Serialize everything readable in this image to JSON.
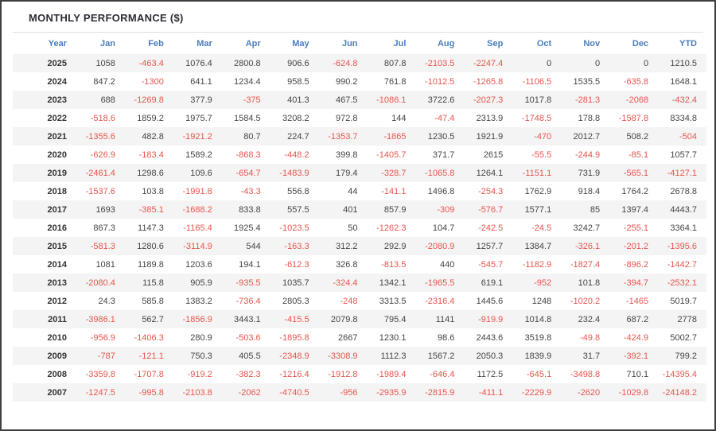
{
  "title": "MONTHLY PERFORMANCE ($)",
  "colors": {
    "header_text": "#4a7ebd",
    "negative": "#e8554e",
    "positive": "#454545",
    "year_text": "#333333",
    "row_stripe": "#f4f4f4",
    "divider": "#dddddd",
    "frame_border": "#3f3f3f",
    "title_text": "#2d2d36"
  },
  "table": {
    "columns": [
      "Year",
      "Jan",
      "Feb",
      "Mar",
      "Apr",
      "May",
      "Jun",
      "Jul",
      "Aug",
      "Sep",
      "Oct",
      "Nov",
      "Dec",
      "YTD"
    ],
    "rows": [
      {
        "year": "2025",
        "values": [
          "1058",
          "-463.4",
          "1076.4",
          "2800.8",
          "906.6",
          "-624.8",
          "807.8",
          "-2103.5",
          "-2247.4",
          "0",
          "0",
          "0",
          "1210.5"
        ]
      },
      {
        "year": "2024",
        "values": [
          "847.2",
          "-1300",
          "641.1",
          "1234.4",
          "958.5",
          "990.2",
          "761.8",
          "-1012.5",
          "-1265.8",
          "-1106.5",
          "1535.5",
          "-635.8",
          "1648.1"
        ]
      },
      {
        "year": "2023",
        "values": [
          "688",
          "-1269.8",
          "377.9",
          "-375",
          "401.3",
          "467.5",
          "-1086.1",
          "3722.6",
          "-2027.3",
          "1017.8",
          "-281.3",
          "-2068",
          "-432.4"
        ]
      },
      {
        "year": "2022",
        "values": [
          "-518.6",
          "1859.2",
          "1975.7",
          "1584.5",
          "3208.2",
          "972.8",
          "144",
          "-47.4",
          "2313.9",
          "-1748.5",
          "178.8",
          "-1587.8",
          "8334.8"
        ]
      },
      {
        "year": "2021",
        "values": [
          "-1355.6",
          "482.8",
          "-1921.2",
          "80.7",
          "224.7",
          "-1353.7",
          "-1865",
          "1230.5",
          "1921.9",
          "-470",
          "2012.7",
          "508.2",
          "-504"
        ]
      },
      {
        "year": "2020",
        "values": [
          "-626.9",
          "-183.4",
          "1589.2",
          "-868.3",
          "-448.2",
          "399.8",
          "-1405.7",
          "371.7",
          "2615",
          "-55.5",
          "-244.9",
          "-85.1",
          "1057.7"
        ]
      },
      {
        "year": "2019",
        "values": [
          "-2461.4",
          "1298.6",
          "109.6",
          "-654.7",
          "-1483.9",
          "179.4",
          "-328.7",
          "-1065.8",
          "1264.1",
          "-1151.1",
          "731.9",
          "-565.1",
          "-4127.1"
        ]
      },
      {
        "year": "2018",
        "values": [
          "-1537.6",
          "103.8",
          "-1991.8",
          "-43.3",
          "556.8",
          "44",
          "-141.1",
          "1496.8",
          "-254.3",
          "1762.9",
          "918.4",
          "1764.2",
          "2678.8"
        ]
      },
      {
        "year": "2017",
        "values": [
          "1693",
          "-385.1",
          "-1688.2",
          "833.8",
          "557.5",
          "401",
          "857.9",
          "-309",
          "-576.7",
          "1577.1",
          "85",
          "1397.4",
          "4443.7"
        ]
      },
      {
        "year": "2016",
        "values": [
          "867.3",
          "1147.3",
          "-1165.4",
          "1925.4",
          "-1023.5",
          "50",
          "-1262.3",
          "104.7",
          "-242.5",
          "-24.5",
          "3242.7",
          "-255.1",
          "3364.1"
        ]
      },
      {
        "year": "2015",
        "values": [
          "-581.3",
          "1280.6",
          "-3114.9",
          "544",
          "-163.3",
          "312.2",
          "292.9",
          "-2080.9",
          "1257.7",
          "1384.7",
          "-326.1",
          "-201.2",
          "-1395.6"
        ]
      },
      {
        "year": "2014",
        "values": [
          "1081",
          "1189.8",
          "1203.6",
          "194.1",
          "-612.3",
          "326.8",
          "-813.5",
          "440",
          "-545.7",
          "-1182.9",
          "-1827.4",
          "-896.2",
          "-1442.7"
        ]
      },
      {
        "year": "2013",
        "values": [
          "-2080.4",
          "115.8",
          "905.9",
          "-935.5",
          "1035.7",
          "-324.4",
          "1342.1",
          "-1965.5",
          "619.1",
          "-952",
          "101.8",
          "-394.7",
          "-2532.1"
        ]
      },
      {
        "year": "2012",
        "values": [
          "24.3",
          "585.8",
          "1383.2",
          "-736.4",
          "2805.3",
          "-248",
          "3313.5",
          "-2316.4",
          "1445.6",
          "1248",
          "-1020.2",
          "-1465",
          "5019.7"
        ]
      },
      {
        "year": "2011",
        "values": [
          "-3986.1",
          "562.7",
          "-1856.9",
          "3443.1",
          "-415.5",
          "2079.8",
          "795.4",
          "1141",
          "-919.9",
          "1014.8",
          "232.4",
          "687.2",
          "2778"
        ]
      },
      {
        "year": "2010",
        "values": [
          "-956.9",
          "-1406.3",
          "280.9",
          "-503.6",
          "-1895.8",
          "2667",
          "1230.1",
          "98.6",
          "2443.6",
          "3519.8",
          "-49.8",
          "-424.9",
          "5002.7"
        ]
      },
      {
        "year": "2009",
        "values": [
          "-787",
          "-121.1",
          "750.3",
          "405.5",
          "-2348.9",
          "-3308.9",
          "1112.3",
          "1567.2",
          "2050.3",
          "1839.9",
          "31.7",
          "-392.1",
          "799.2"
        ]
      },
      {
        "year": "2008",
        "values": [
          "-3359.8",
          "-1707.8",
          "-919.2",
          "-382.3",
          "-1216.4",
          "-1912.8",
          "-1989.4",
          "-646.4",
          "1172.5",
          "-645.1",
          "-3498.8",
          "710.1",
          "-14395.4"
        ]
      },
      {
        "year": "2007",
        "values": [
          "-1247.5",
          "-995.8",
          "-2103.8",
          "-2062",
          "-4740.5",
          "-956",
          "-2935.9",
          "-2815.9",
          "-411.1",
          "-2229.9",
          "-2620",
          "-1029.8",
          "-24148.2"
        ]
      }
    ]
  }
}
